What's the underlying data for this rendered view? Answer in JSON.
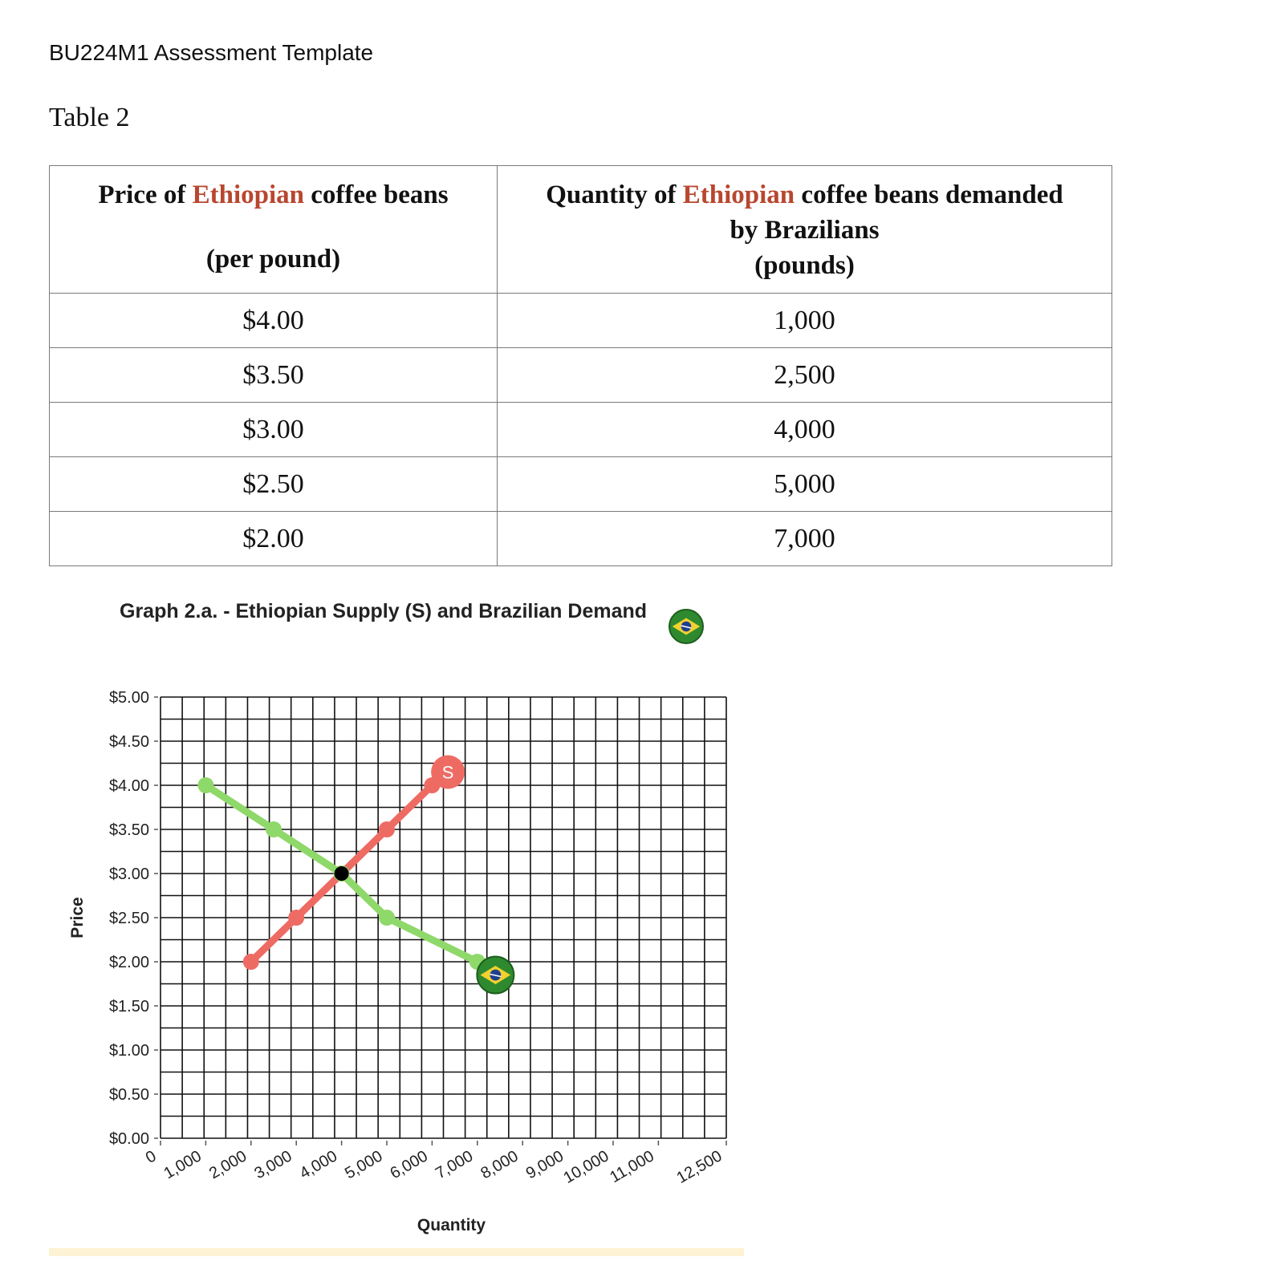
{
  "document": {
    "header": "BU224M1 Assessment Template",
    "table_caption": "Table 2"
  },
  "table": {
    "col1": {
      "pre": "Price of ",
      "accent": "Ethiopian",
      "post": " coffee beans",
      "line2": "(per pound)"
    },
    "col2": {
      "pre": "Quantity of ",
      "accent": "Ethiopian",
      "post": " coffee beans demanded",
      "line2": "by Brazilians",
      "line3": "(pounds)"
    },
    "rows": [
      {
        "price": "$4.00",
        "quantity": "1,000"
      },
      {
        "price": "$3.50",
        "quantity": "2,500"
      },
      {
        "price": "$3.00",
        "quantity": "4,000"
      },
      {
        "price": "$2.50",
        "quantity": "5,000"
      },
      {
        "price": "$2.00",
        "quantity": "7,000"
      }
    ]
  },
  "colors": {
    "accent_text": "#b8472f",
    "supply": "#ee6b63",
    "demand": "#8fd86a",
    "equilibrium": "#000000",
    "grid": "#111111",
    "flag_green": "#2f8a2f",
    "flag_yellow": "#f2d22e",
    "flag_blue": "#1f3f8f"
  },
  "chart_data": {
    "type": "line",
    "title": "Graph 2.a. - Ethiopian Supply (S) and Brazilian Demand",
    "xlabel": "Quantity",
    "ylabel": "Price",
    "xlim": [
      0,
      12500
    ],
    "ylim": [
      0,
      5
    ],
    "x_ticks": [
      0,
      1000,
      2000,
      3000,
      4000,
      5000,
      6000,
      7000,
      8000,
      9000,
      10000,
      11000,
      12500
    ],
    "x_tick_labels": [
      "0",
      "1,000",
      "2,000",
      "3,000",
      "4,000",
      "5,000",
      "6,000",
      "7,000",
      "8,000",
      "9,000",
      "10,000",
      "11,000",
      "12,500"
    ],
    "y_ticks": [
      0,
      0.5,
      1,
      1.5,
      2,
      2.5,
      3,
      3.5,
      4,
      4.5,
      5
    ],
    "y_tick_labels": [
      "$0.00",
      "$0.50",
      "$1.00",
      "$1.50",
      "$2.00",
      "$2.50",
      "$3.00",
      "$3.50",
      "$4.00",
      "$4.50",
      "$5.00"
    ],
    "grid": true,
    "series": [
      {
        "name": "S",
        "role": "supply",
        "points": [
          [
            2000,
            2.0
          ],
          [
            3000,
            2.5
          ],
          [
            4000,
            3.0
          ],
          [
            5000,
            3.5
          ],
          [
            6000,
            4.0
          ]
        ],
        "end_marker": {
          "x": 6350,
          "y": 4.15,
          "label": "S"
        }
      },
      {
        "role": "demand",
        "points": [
          [
            1000,
            4.0
          ],
          [
            2500,
            3.5
          ],
          [
            4000,
            3.0
          ],
          [
            5000,
            2.5
          ],
          [
            7000,
            2.0
          ]
        ],
        "end_marker": {
          "x": 7400,
          "y": 1.85,
          "icon": "brazil-flag-icon"
        }
      }
    ],
    "equilibrium": {
      "x": 4000,
      "y": 3.0
    }
  }
}
